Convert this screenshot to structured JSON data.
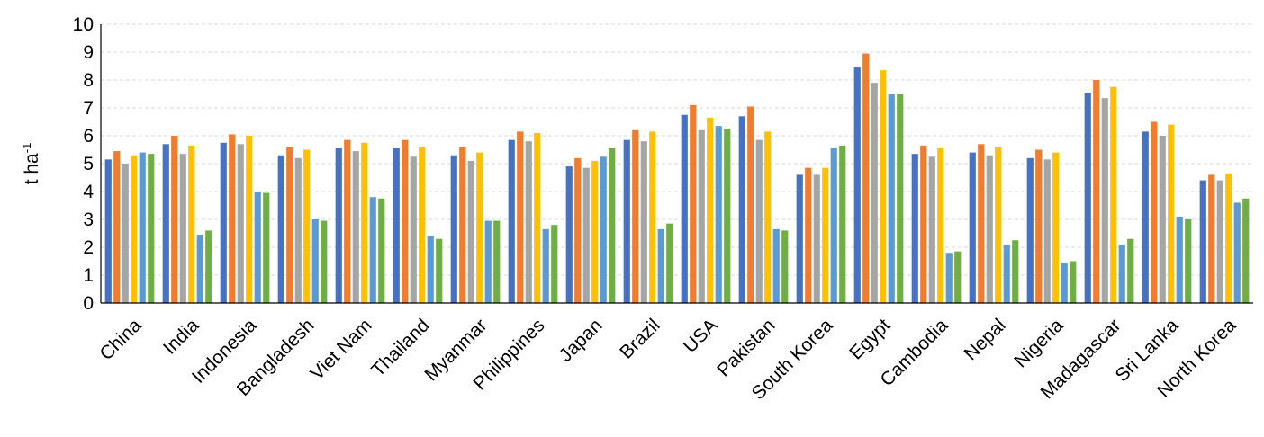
{
  "chart_data": {
    "type": "bar",
    "ylabel": "t ha",
    "ylabel_superscript": "-1",
    "ylim": [
      0,
      10
    ],
    "yticks": [
      "0",
      "1",
      "2",
      "3",
      "4",
      "5",
      "6",
      "7",
      "8",
      "9",
      "10"
    ],
    "grid": true,
    "categories": [
      "China",
      "India",
      "Indonesia",
      "Bangladesh",
      "Viet Nam",
      "Thailand",
      "Myanmar",
      "Philippines",
      "Japan",
      "Brazil",
      "USA",
      "Pakistan",
      "South Korea",
      "Egypt",
      "Cambodia",
      "Nepal",
      "Nigeria",
      "Madagascar",
      "Sri Lanka",
      "North Korea"
    ],
    "series": [
      {
        "color": "#4472c4",
        "values": [
          5.15,
          5.7,
          5.75,
          5.3,
          5.55,
          5.55,
          5.3,
          5.85,
          4.9,
          5.85,
          6.75,
          6.7,
          4.6,
          8.45,
          5.35,
          5.4,
          5.2,
          7.55,
          6.15,
          4.4
        ]
      },
      {
        "color": "#ed7d31",
        "values": [
          5.45,
          6.0,
          6.05,
          5.6,
          5.85,
          5.85,
          5.6,
          6.15,
          5.2,
          6.2,
          7.1,
          7.05,
          4.85,
          8.95,
          5.65,
          5.7,
          5.5,
          8.0,
          6.5,
          4.6
        ]
      },
      {
        "color": "#a5a5a5",
        "values": [
          5.0,
          5.35,
          5.7,
          5.2,
          5.45,
          5.25,
          5.1,
          5.8,
          4.85,
          5.8,
          6.2,
          5.85,
          4.6,
          7.9,
          5.25,
          5.3,
          5.15,
          7.35,
          6.0,
          4.4
        ]
      },
      {
        "color": "#ffc000",
        "values": [
          5.3,
          5.65,
          6.0,
          5.5,
          5.75,
          5.6,
          5.4,
          6.1,
          5.1,
          6.15,
          6.65,
          6.15,
          4.85,
          8.35,
          5.55,
          5.6,
          5.4,
          7.75,
          6.4,
          4.65
        ]
      },
      {
        "color": "#5b9bd5",
        "values": [
          5.4,
          2.45,
          4.0,
          3.0,
          3.8,
          2.4,
          2.95,
          2.65,
          5.25,
          2.65,
          6.35,
          2.65,
          5.55,
          7.5,
          1.8,
          2.1,
          1.45,
          2.1,
          3.1,
          3.6
        ]
      },
      {
        "color": "#70ad47",
        "values": [
          5.35,
          2.6,
          3.95,
          2.95,
          3.75,
          2.3,
          2.95,
          2.8,
          5.55,
          2.85,
          6.25,
          2.6,
          5.65,
          7.5,
          1.85,
          2.25,
          1.5,
          2.3,
          3.0,
          3.75
        ]
      }
    ]
  }
}
